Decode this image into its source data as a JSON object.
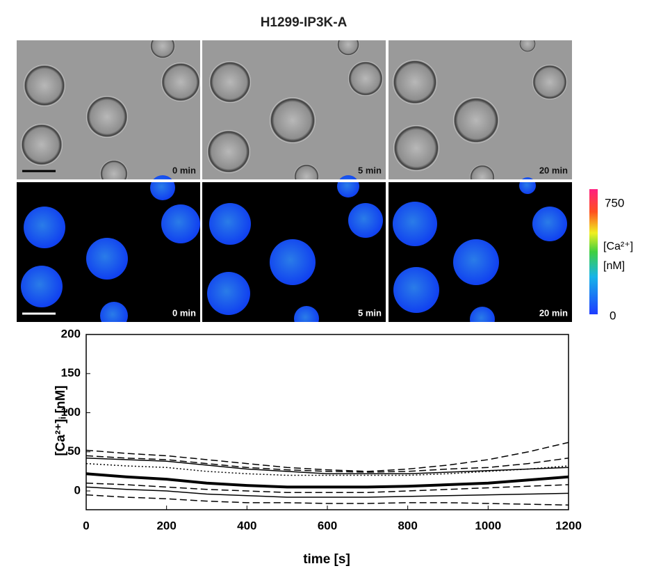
{
  "title": "H1299-IP3K-A",
  "brightfield_panels": [
    "0 min",
    "5 min",
    "20 min"
  ],
  "fluorescence_panels": [
    "0 min",
    "5 min",
    "20 min"
  ],
  "colorbar": {
    "max_label": "750",
    "min_label": "0",
    "quantity": "[Ca²⁺]",
    "unit": "[nM]"
  },
  "chart_data": {
    "type": "line",
    "x_label": "time [s]",
    "y_label": "[Ca²⁺]ᵢ [nM]",
    "x": [
      0,
      100,
      200,
      300,
      400,
      500,
      600,
      700,
      800,
      900,
      1000,
      1100,
      1200
    ],
    "xlim": [
      0,
      1200
    ],
    "xticks": [
      0,
      200,
      400,
      600,
      800,
      1000,
      1200
    ],
    "ylim": [
      -24,
      200
    ],
    "yticks": [
      0,
      50,
      100,
      150,
      200
    ],
    "series": [
      {
        "color": "#000000",
        "style": "dashed",
        "values": [
          52,
          48,
          45,
          40,
          35,
          30,
          27,
          25,
          28,
          33,
          40,
          50,
          62
        ]
      },
      {
        "color": "#000000",
        "style": "dashed",
        "values": [
          45,
          42,
          40,
          35,
          30,
          27,
          25,
          24,
          25,
          28,
          30,
          35,
          42
        ]
      },
      {
        "color": "#000000",
        "style": "solid",
        "values": [
          42,
          40,
          38,
          33,
          28,
          25,
          22,
          22,
          22,
          24,
          26,
          28,
          30
        ]
      },
      {
        "color": "#000000",
        "style": "dotted",
        "values": [
          35,
          32,
          30,
          25,
          22,
          20,
          20,
          20,
          20,
          22,
          25,
          28,
          32
        ]
      },
      {
        "color": "#000000",
        "style": "thick",
        "values": [
          22,
          18,
          15,
          10,
          7,
          5,
          5,
          5,
          6,
          8,
          10,
          14,
          18
        ]
      },
      {
        "color": "#000000",
        "style": "dashed",
        "values": [
          10,
          8,
          5,
          2,
          0,
          -2,
          -2,
          -2,
          0,
          2,
          4,
          6,
          8
        ]
      },
      {
        "color": "#000000",
        "style": "solid",
        "values": [
          5,
          2,
          0,
          -4,
          -6,
          -8,
          -8,
          -8,
          -7,
          -6,
          -5,
          -4,
          -3
        ]
      },
      {
        "color": "#000000",
        "style": "dashed",
        "values": [
          -5,
          -8,
          -10,
          -13,
          -15,
          -15,
          -16,
          -16,
          -15,
          -15,
          -16,
          -17,
          -18
        ]
      }
    ]
  }
}
